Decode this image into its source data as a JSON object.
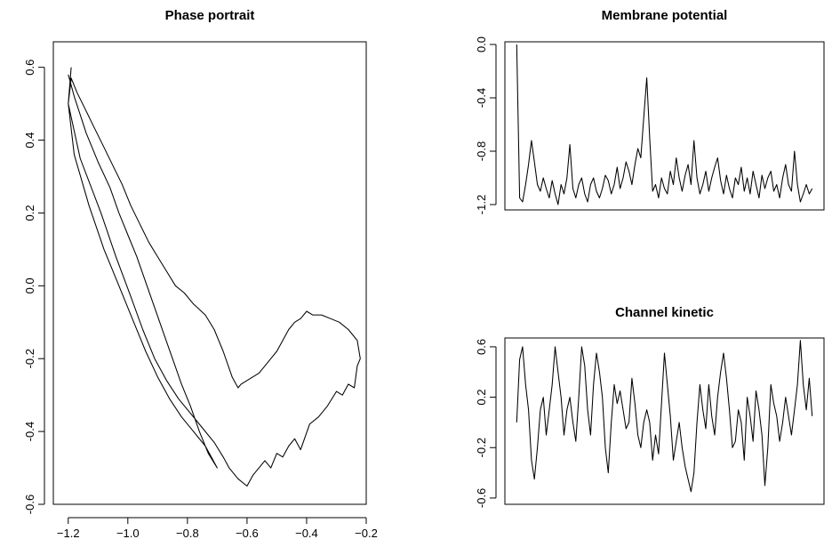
{
  "chart_data": [
    {
      "type": "line",
      "title": "Phase portrait",
      "xlabel": "",
      "ylabel": "",
      "xlim": [
        -1.25,
        -0.2
      ],
      "ylim": [
        -0.6,
        0.67
      ],
      "x_ticks": [
        "-1.2",
        "-1.0",
        "-0.8",
        "-0.6",
        "-0.4",
        "-0.2"
      ],
      "y_ticks": [
        "-0.6",
        "-0.4",
        "-0.2",
        "0.0",
        "0.2",
        "0.4",
        "0.6"
      ],
      "series": [
        {
          "x": [
            -1.19,
            -1.2,
            -1.16,
            -1.09,
            -1.04,
            -0.99,
            -0.95,
            -0.91,
            -0.87,
            -0.83,
            -0.79,
            -0.75,
            -0.71,
            -0.68,
            -0.66,
            -0.63,
            -0.6,
            -0.58,
            -0.56,
            -0.54,
            -0.52,
            -0.5,
            -0.48,
            -0.46,
            -0.44,
            -0.42,
            -0.39,
            -0.36,
            -0.33,
            -0.3,
            -0.28,
            -0.26,
            -0.24,
            -0.23,
            -0.22,
            -0.23,
            -0.26,
            -0.29,
            -0.32,
            -0.35,
            -0.38,
            -0.4,
            -0.42,
            -0.44,
            -0.46,
            -0.48,
            -0.5,
            -0.52,
            -0.54,
            -0.56,
            -0.58,
            -0.6,
            -0.62,
            -0.63,
            -0.65,
            -0.68,
            -0.71,
            -0.74,
            -0.78,
            -0.81,
            -0.84,
            -0.87,
            -0.9,
            -0.93,
            -0.96,
            -0.99,
            -1.02,
            -1.05,
            -1.08,
            -1.11,
            -1.14,
            -1.17,
            -1.19,
            -1.2,
            -1.18,
            -1.13,
            -1.08,
            -1.03,
            -0.98,
            -0.94,
            -0.9,
            -0.86,
            -0.82,
            -0.78,
            -0.74,
            -0.72,
            -0.7,
            -0.73,
            -0.76,
            -0.79,
            -0.82,
            -0.85,
            -0.88,
            -0.91,
            -0.94,
            -0.97,
            -1.0,
            -1.03,
            -1.06,
            -1.1,
            -1.14,
            -1.18,
            -1.2
          ],
          "y": [
            0.6,
            0.5,
            0.35,
            0.2,
            0.08,
            -0.03,
            -0.12,
            -0.2,
            -0.26,
            -0.31,
            -0.35,
            -0.39,
            -0.43,
            -0.47,
            -0.5,
            -0.53,
            -0.55,
            -0.52,
            -0.5,
            -0.48,
            -0.5,
            -0.46,
            -0.47,
            -0.44,
            -0.42,
            -0.45,
            -0.38,
            -0.36,
            -0.33,
            -0.29,
            -0.3,
            -0.27,
            -0.28,
            -0.22,
            -0.2,
            -0.15,
            -0.12,
            -0.1,
            -0.09,
            -0.08,
            -0.08,
            -0.07,
            -0.09,
            -0.1,
            -0.12,
            -0.15,
            -0.18,
            -0.2,
            -0.22,
            -0.24,
            -0.25,
            -0.26,
            -0.27,
            -0.28,
            -0.25,
            -0.18,
            -0.12,
            -0.08,
            -0.05,
            -0.02,
            0.0,
            0.04,
            0.08,
            0.12,
            0.17,
            0.22,
            0.28,
            0.33,
            0.38,
            0.43,
            0.48,
            0.53,
            0.57,
            0.5,
            0.36,
            0.22,
            0.1,
            0.0,
            -0.1,
            -0.18,
            -0.25,
            -0.31,
            -0.36,
            -0.4,
            -0.44,
            -0.47,
            -0.5,
            -0.46,
            -0.4,
            -0.33,
            -0.27,
            -0.2,
            -0.13,
            -0.06,
            0.01,
            0.08,
            0.14,
            0.2,
            0.27,
            0.34,
            0.42,
            0.52,
            0.58
          ]
        }
      ]
    },
    {
      "type": "line",
      "title": "Membrane potential",
      "xlabel": "",
      "ylabel": "",
      "ylim": [
        -1.24,
        0.02
      ],
      "y_ticks": [
        "0.0",
        "-0.4",
        "-0.8",
        "-1.2"
      ],
      "series": [
        {
          "x": [
            0,
            1,
            2,
            3,
            4,
            5,
            6,
            7,
            8,
            9,
            10,
            11,
            12,
            13,
            14,
            15,
            16,
            17,
            18,
            19,
            20,
            21,
            22,
            23,
            24,
            25,
            26,
            27,
            28,
            29,
            30,
            31,
            32,
            33,
            34,
            35,
            36,
            37,
            38,
            39,
            40,
            41,
            42,
            43,
            44,
            45,
            46,
            47,
            48,
            49,
            50,
            51,
            52,
            53,
            54,
            55,
            56,
            57,
            58,
            59,
            60,
            61,
            62,
            63,
            64,
            65,
            66,
            67,
            68,
            69,
            70,
            71,
            72,
            73,
            74,
            75,
            76,
            77,
            78,
            79,
            80,
            81,
            82,
            83,
            84,
            85,
            86,
            87,
            88,
            89,
            90,
            91,
            92,
            93,
            94,
            95,
            96,
            97,
            98,
            99,
            100
          ],
          "y": [
            0.0,
            -1.15,
            -1.18,
            -1.05,
            -0.9,
            -0.72,
            -0.88,
            -1.05,
            -1.1,
            -1.0,
            -1.08,
            -1.15,
            -1.02,
            -1.12,
            -1.2,
            -1.05,
            -1.12,
            -1.0,
            -0.75,
            -1.08,
            -1.15,
            -1.05,
            -1.0,
            -1.12,
            -1.18,
            -1.05,
            -1.0,
            -1.1,
            -1.15,
            -1.08,
            -0.98,
            -1.02,
            -1.12,
            -1.05,
            -0.92,
            -1.08,
            -1.0,
            -0.88,
            -0.95,
            -1.05,
            -0.9,
            -0.78,
            -0.85,
            -0.55,
            -0.25,
            -0.7,
            -1.1,
            -1.05,
            -1.15,
            -1.0,
            -1.08,
            -1.12,
            -0.95,
            -1.05,
            -0.85,
            -1.0,
            -1.1,
            -0.98,
            -0.9,
            -1.05,
            -0.72,
            -1.0,
            -1.12,
            -1.05,
            -0.95,
            -1.1,
            -1.0,
            -0.92,
            -0.85,
            -1.02,
            -1.12,
            -0.98,
            -1.08,
            -1.15,
            -1.0,
            -1.05,
            -0.92,
            -1.1,
            -1.0,
            -1.12,
            -0.95,
            -1.05,
            -1.15,
            -0.98,
            -1.08,
            -1.0,
            -0.95,
            -1.1,
            -1.05,
            -1.15,
            -1.0,
            -0.9,
            -1.05,
            -1.1,
            -0.8,
            -1.05,
            -1.18,
            -1.12,
            -1.05,
            -1.12,
            -1.08
          ]
        }
      ]
    },
    {
      "type": "line",
      "title": "Channel kinetic",
      "xlabel": "",
      "ylabel": "",
      "ylim": [
        -0.65,
        0.67
      ],
      "y_ticks": [
        "0.6",
        "0.2",
        "-0.2",
        "-0.6"
      ],
      "series": [
        {
          "x": [
            0,
            1,
            2,
            3,
            4,
            5,
            6,
            7,
            8,
            9,
            10,
            11,
            12,
            13,
            14,
            15,
            16,
            17,
            18,
            19,
            20,
            21,
            22,
            23,
            24,
            25,
            26,
            27,
            28,
            29,
            30,
            31,
            32,
            33,
            34,
            35,
            36,
            37,
            38,
            39,
            40,
            41,
            42,
            43,
            44,
            45,
            46,
            47,
            48,
            49,
            50,
            51,
            52,
            53,
            54,
            55,
            56,
            57,
            58,
            59,
            60,
            61,
            62,
            63,
            64,
            65,
            66,
            67,
            68,
            69,
            70,
            71,
            72,
            73,
            74,
            75,
            76,
            77,
            78,
            79,
            80,
            81,
            82,
            83,
            84,
            85,
            86,
            87,
            88,
            89,
            90,
            91,
            92,
            93,
            94,
            95,
            96,
            97,
            98,
            99,
            100
          ],
          "y": [
            0.0,
            0.5,
            0.6,
            0.3,
            0.1,
            -0.3,
            -0.45,
            -0.2,
            0.1,
            0.2,
            -0.1,
            0.1,
            0.3,
            0.6,
            0.4,
            0.2,
            -0.1,
            0.1,
            0.2,
            0.0,
            -0.15,
            0.2,
            0.6,
            0.45,
            0.1,
            -0.1,
            0.3,
            0.55,
            0.4,
            0.2,
            -0.2,
            -0.4,
            0.0,
            0.3,
            0.15,
            0.25,
            0.1,
            -0.05,
            0.0,
            0.35,
            0.15,
            -0.1,
            -0.2,
            0.0,
            0.1,
            0.0,
            -0.3,
            -0.1,
            -0.25,
            0.15,
            0.55,
            0.3,
            0.05,
            -0.3,
            -0.15,
            0.0,
            -0.2,
            -0.35,
            -0.45,
            -0.55,
            -0.4,
            0.0,
            0.3,
            0.1,
            -0.05,
            0.3,
            0.05,
            -0.1,
            0.2,
            0.4,
            0.55,
            0.35,
            0.1,
            -0.2,
            -0.15,
            0.1,
            0.0,
            -0.3,
            0.2,
            0.05,
            -0.15,
            0.25,
            0.1,
            -0.1,
            -0.5,
            -0.2,
            0.3,
            0.15,
            0.05,
            -0.15,
            0.0,
            0.2,
            0.05,
            -0.1,
            0.1,
            0.3,
            0.65,
            0.3,
            0.1,
            0.35,
            0.05
          ]
        }
      ]
    }
  ]
}
